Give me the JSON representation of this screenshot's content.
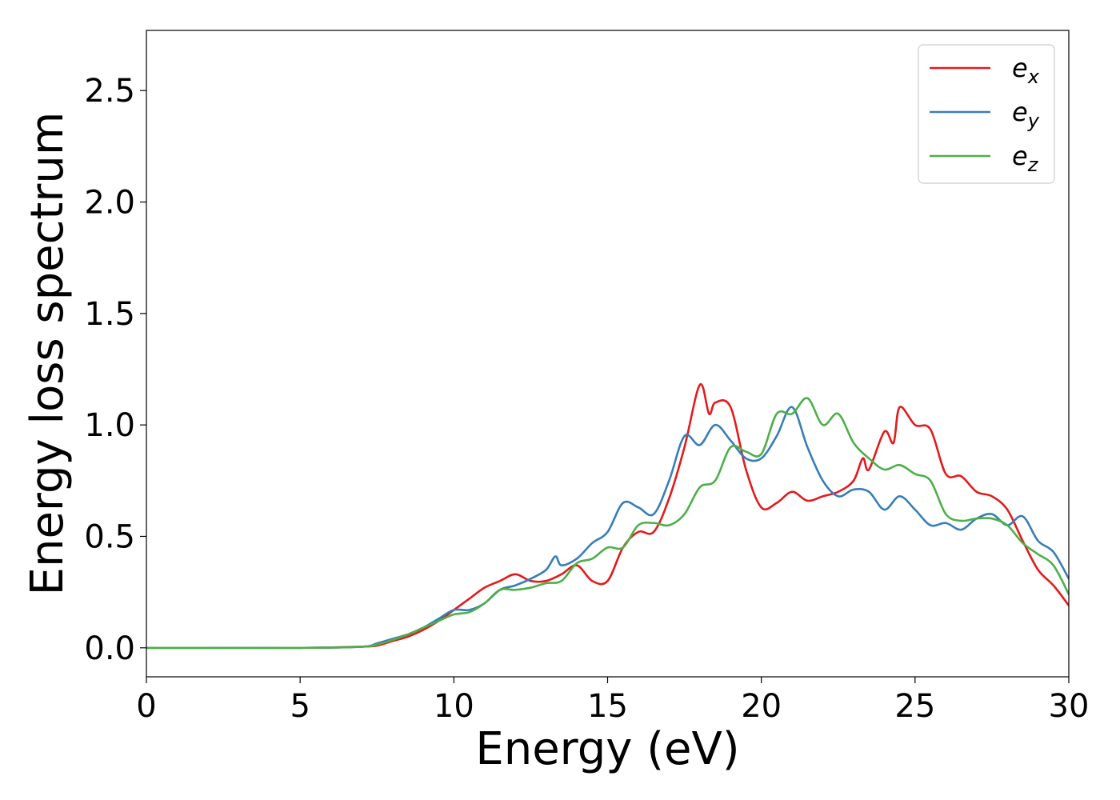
{
  "chart_data": {
    "type": "line",
    "xlabel": "Energy (eV)",
    "ylabel": "Energy loss spectrum",
    "xlim": [
      0,
      30
    ],
    "ylim": [
      -0.13,
      2.77
    ],
    "xticks": [
      0,
      5,
      10,
      15,
      20,
      25,
      30
    ],
    "yticks": [
      0.0,
      0.5,
      1.0,
      1.5,
      2.0,
      2.5
    ],
    "xtick_labels": [
      "0",
      "5",
      "10",
      "15",
      "20",
      "25",
      "30"
    ],
    "ytick_labels": [
      "0.0",
      "0.5",
      "1.0",
      "1.5",
      "2.0",
      "2.5"
    ],
    "grid": false,
    "legend_position": "top-right",
    "series": [
      {
        "name": "e_x",
        "label_base": "e",
        "label_sub": "x",
        "color": "#e41a1c",
        "x": [
          0,
          5,
          7,
          7.5,
          8,
          8.5,
          9,
          9.5,
          10,
          10.5,
          11,
          11.5,
          12,
          12.5,
          13,
          13.5,
          14,
          14.5,
          15,
          15.5,
          16,
          16.5,
          17,
          17.5,
          18,
          18.3,
          18.5,
          19,
          19.5,
          20,
          20.5,
          21,
          21.5,
          22,
          22.5,
          23,
          23.3,
          23.5,
          24,
          24.3,
          24.5,
          25,
          25.5,
          26,
          26.5,
          27,
          27.5,
          28,
          28.5,
          29,
          29.5,
          30
        ],
        "y": [
          0.0,
          0.0,
          0.005,
          0.01,
          0.03,
          0.05,
          0.08,
          0.12,
          0.17,
          0.22,
          0.27,
          0.3,
          0.33,
          0.3,
          0.3,
          0.33,
          0.37,
          0.3,
          0.3,
          0.45,
          0.52,
          0.52,
          0.67,
          0.9,
          1.18,
          1.05,
          1.1,
          1.08,
          0.8,
          0.63,
          0.65,
          0.7,
          0.66,
          0.68,
          0.7,
          0.75,
          0.85,
          0.8,
          0.97,
          0.92,
          1.08,
          1.0,
          0.98,
          0.78,
          0.77,
          0.7,
          0.68,
          0.62,
          0.48,
          0.35,
          0.28,
          0.19
        ]
      },
      {
        "name": "e_y",
        "label_base": "e",
        "label_sub": "y",
        "color": "#377eb8",
        "x": [
          0,
          5,
          7,
          7.5,
          8,
          8.5,
          9,
          9.5,
          10,
          10.5,
          11,
          11.5,
          12,
          12.5,
          13,
          13.3,
          13.5,
          14,
          14.5,
          15,
          15.5,
          16,
          16.5,
          17,
          17.5,
          18,
          18.5,
          19,
          19.5,
          20,
          20.5,
          21,
          21.5,
          22,
          22.5,
          23,
          23.5,
          24,
          24.5,
          25,
          25.5,
          26,
          26.5,
          27,
          27.5,
          28,
          28.5,
          29,
          29.5,
          30
        ],
        "y": [
          0.0,
          0.0,
          0.005,
          0.02,
          0.04,
          0.06,
          0.09,
          0.13,
          0.17,
          0.17,
          0.2,
          0.26,
          0.28,
          0.31,
          0.35,
          0.41,
          0.37,
          0.4,
          0.47,
          0.52,
          0.65,
          0.63,
          0.6,
          0.75,
          0.95,
          0.91,
          1.0,
          0.93,
          0.85,
          0.85,
          0.95,
          1.08,
          0.9,
          0.75,
          0.68,
          0.71,
          0.7,
          0.62,
          0.68,
          0.62,
          0.55,
          0.56,
          0.53,
          0.58,
          0.6,
          0.55,
          0.59,
          0.48,
          0.43,
          0.31
        ]
      },
      {
        "name": "e_z",
        "label_base": "e",
        "label_sub": "z",
        "color": "#4daf4a",
        "x": [
          0,
          5,
          7,
          7.5,
          8,
          8.5,
          9,
          9.5,
          10,
          10.5,
          11,
          11.5,
          12,
          12.5,
          13,
          13.5,
          14,
          14.5,
          15,
          15.5,
          16,
          16.5,
          17,
          17.5,
          18,
          18.5,
          19,
          19.5,
          20,
          20.5,
          21,
          21.5,
          22,
          22.5,
          23,
          23.5,
          24,
          24.5,
          25,
          25.5,
          26,
          26.5,
          27,
          27.5,
          28,
          28.5,
          29,
          29.5,
          30
        ],
        "y": [
          0.0,
          0.0,
          0.005,
          0.015,
          0.035,
          0.06,
          0.09,
          0.12,
          0.15,
          0.16,
          0.2,
          0.26,
          0.26,
          0.27,
          0.29,
          0.3,
          0.38,
          0.4,
          0.45,
          0.45,
          0.55,
          0.56,
          0.55,
          0.6,
          0.72,
          0.75,
          0.9,
          0.88,
          0.87,
          1.05,
          1.05,
          1.12,
          1.0,
          1.05,
          0.92,
          0.85,
          0.8,
          0.82,
          0.78,
          0.75,
          0.6,
          0.57,
          0.58,
          0.58,
          0.55,
          0.47,
          0.42,
          0.37,
          0.24
        ]
      }
    ]
  }
}
